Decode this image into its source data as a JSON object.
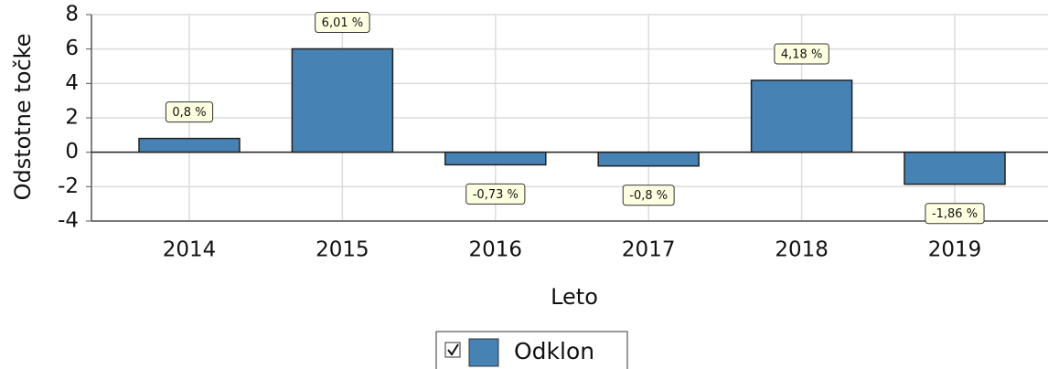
{
  "chart_data": {
    "type": "bar",
    "categories": [
      "2014",
      "2015",
      "2016",
      "2017",
      "2018",
      "2019"
    ],
    "series": [
      {
        "name": "Odklon",
        "color": "#4682b4",
        "values": [
          0.8,
          6.01,
          -0.73,
          -0.8,
          4.18,
          -1.86
        ],
        "value_labels": [
          "0,8 %",
          "6,01 %",
          "-0,73 %",
          "-0,8 %",
          "4,18 %",
          "-1,86 %"
        ]
      }
    ],
    "ylim": [
      -4,
      8
    ],
    "yticks": [
      -4,
      -2,
      0,
      2,
      4,
      6,
      8
    ],
    "ylabel": "Odstotne točke",
    "xlabel": "Leto",
    "grid": true
  }
}
